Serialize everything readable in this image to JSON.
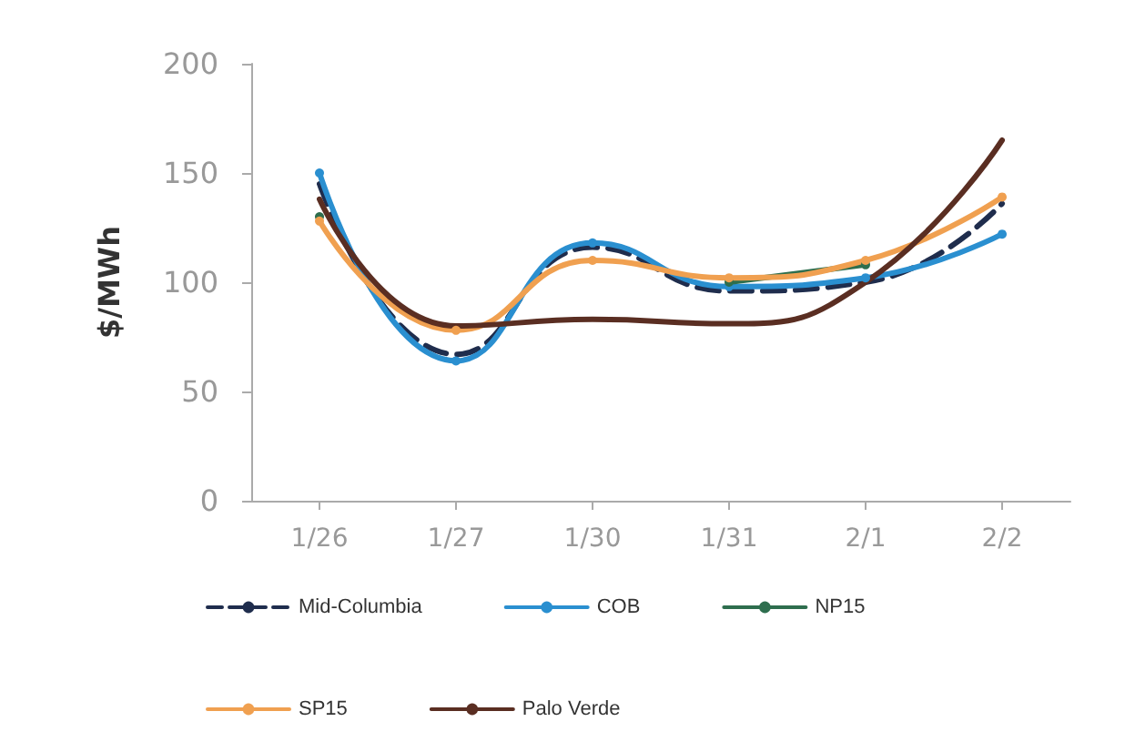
{
  "chart_data": {
    "type": "line",
    "ylabel": "$/MWh",
    "categories": [
      "1/26",
      "1/27",
      "1/30",
      "1/31",
      "2/1",
      "2/2"
    ],
    "ylim": [
      0,
      200
    ],
    "yticks": [
      0,
      50,
      100,
      150,
      200
    ],
    "grid": false,
    "legend": "bottom",
    "marker": "circle",
    "line_style": "solid",
    "series": [
      {
        "name": "Mid-Columbia",
        "color": "#1f2d4d",
        "values": [
          145,
          67,
          116,
          96,
          100,
          136
        ],
        "line_style": "dashed",
        "marker": "none"
      },
      {
        "name": "COB",
        "color": "#2a8fd0",
        "values": [
          150,
          64,
          118,
          98,
          102,
          122
        ]
      },
      {
        "name": "NP15",
        "color": "#2e6e4e",
        "values": [
          130,
          null,
          null,
          100,
          108,
          null
        ]
      },
      {
        "name": "SP15",
        "color": "#f0a050",
        "values": [
          128,
          78,
          110,
          102,
          110,
          139
        ]
      },
      {
        "name": "Palo Verde",
        "color": "#5a2e22",
        "values": [
          138,
          80,
          83,
          81,
          100,
          165
        ],
        "marker": "none"
      }
    ]
  }
}
